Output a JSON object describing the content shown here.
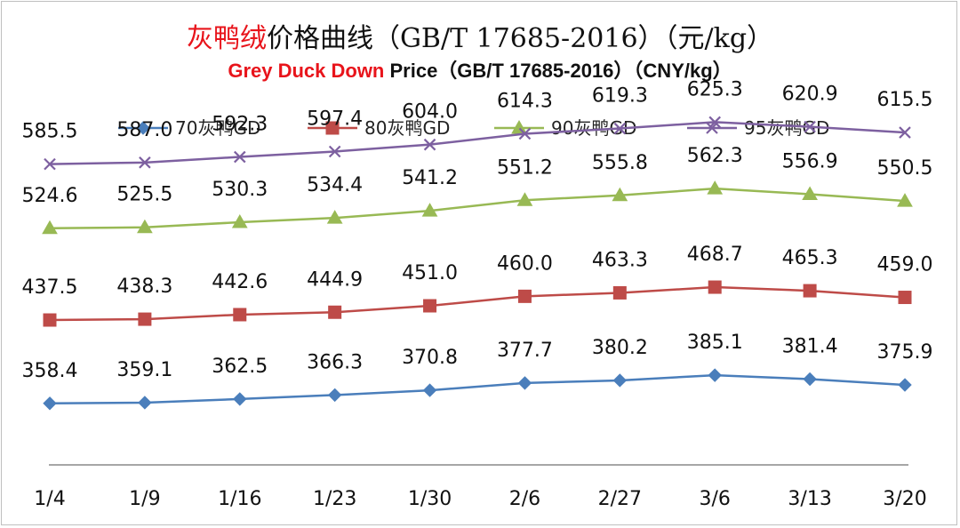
{
  "chart_data": {
    "type": "line",
    "title_cn": {
      "highlight": "灰鸭绒",
      "rest": "价格曲线（GB/T 17685-2016）（元/kg）"
    },
    "title_en": {
      "highlight": "Grey Duck Down",
      "rest": " Price（GB/T 17685-2016）（CNY/kg）"
    },
    "categories": [
      "1/4",
      "1/9",
      "1/16",
      "1/23",
      "1/30",
      "2/6",
      "2/27",
      "3/6",
      "3/13",
      "3/20"
    ],
    "ylim": [
      300,
      640
    ],
    "grid": false,
    "legend_position": "top",
    "series": [
      {
        "name": "70灰鸭GD",
        "marker": "diamond",
        "color": "#4a7ebb",
        "values": [
          358.4,
          359.1,
          362.5,
          366.3,
          370.8,
          377.7,
          380.2,
          385.1,
          381.4,
          375.9
        ],
        "labels": [
          "358.4",
          "359.1",
          "362.5",
          "366.3",
          "370.8",
          "377.7",
          "380.2",
          "385.1",
          "381.4",
          "375.9"
        ]
      },
      {
        "name": "80灰鸭GD",
        "marker": "square",
        "color": "#be4b48",
        "values": [
          437.5,
          438.3,
          442.6,
          444.9,
          451.0,
          460.0,
          463.3,
          468.7,
          465.3,
          459.0
        ],
        "labels": [
          "437.5",
          "438.3",
          "442.6",
          "444.9",
          "451.0",
          "460.0",
          "463.3",
          "468.7",
          "465.3",
          "459.0"
        ]
      },
      {
        "name": "90灰鸭GD",
        "marker": "triangle",
        "color": "#98b954",
        "values": [
          524.6,
          525.5,
          530.3,
          534.4,
          541.2,
          551.2,
          555.8,
          562.3,
          556.9,
          550.5
        ],
        "labels": [
          "524.6",
          "525.5",
          "530.3",
          "534.4",
          "541.2",
          "551.2",
          "555.8",
          "562.3",
          "556.9",
          "550.5"
        ]
      },
      {
        "name": "95灰鸭GD",
        "marker": "x",
        "color": "#7d60a0",
        "values": [
          585.5,
          587.0,
          592.3,
          597.4,
          604.0,
          614.3,
          619.3,
          625.3,
          620.9,
          615.5
        ],
        "labels": [
          "585.5",
          "587.0",
          "592.3",
          "597.4",
          "604.0",
          "614.3",
          "619.3",
          "625.3",
          "620.9",
          "615.5"
        ]
      }
    ]
  }
}
